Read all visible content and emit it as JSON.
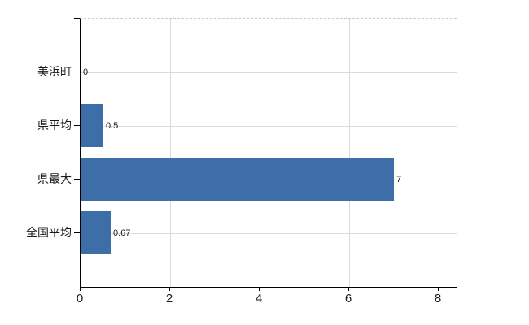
{
  "chart_data": {
    "type": "bar",
    "orientation": "horizontal",
    "title": "",
    "xlabel": "",
    "ylabel": "",
    "categories": [
      "美浜町",
      "県平均",
      "県最大",
      "全国平均"
    ],
    "values": [
      0,
      0.5,
      7,
      0.67
    ],
    "value_labels": [
      "0",
      "0.5",
      "7",
      "0.67"
    ],
    "x_ticks": [
      "0",
      "2",
      "4",
      "6",
      "8"
    ],
    "x_tick_values": [
      0,
      2,
      4,
      6,
      8
    ],
    "xlim": [
      0,
      8.4
    ],
    "grid": true,
    "legend": false,
    "bar_color": "#3e6ea8",
    "grid_color": "#d8dcd8",
    "axis_color": "#000000",
    "text_color": "#1a1a1a",
    "background_color": "#ffffff"
  }
}
